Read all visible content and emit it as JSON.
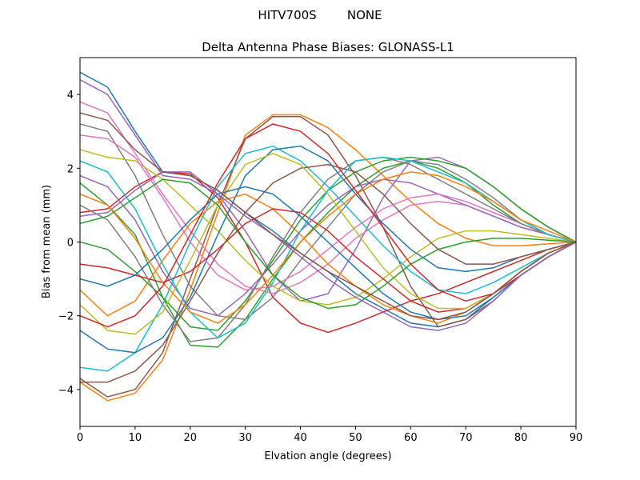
{
  "chart_data": {
    "type": "line",
    "suptitle": "HITV700S        NONE",
    "title": "Delta Antenna Phase Biases: GLONASS-L1",
    "xlabel": "Elvation angle (degrees)",
    "ylabel": "Bias from mean (mm)",
    "xlim": [
      0,
      90
    ],
    "ylim": [
      -5,
      5
    ],
    "xticks": [
      0,
      10,
      20,
      30,
      40,
      50,
      60,
      70,
      80,
      90
    ],
    "yticks": [
      -4,
      -2,
      0,
      2,
      4
    ],
    "grid": false,
    "colors": [
      "#1f77b4",
      "#ff7f0e",
      "#2ca02c",
      "#d62728",
      "#9467bd",
      "#8c564b",
      "#e377c2",
      "#7f7f7f",
      "#bcbd22",
      "#17becf"
    ],
    "x": [
      0,
      5,
      10,
      15,
      20,
      25,
      30,
      35,
      40,
      45,
      50,
      55,
      60,
      65,
      70,
      75,
      80,
      85,
      90
    ],
    "series": [
      {
        "values": [
          4.6,
          4.2,
          3.0,
          1.9,
          1.8,
          1.4,
          0.8,
          0.3,
          -0.3,
          -0.8,
          -1.4,
          -1.8,
          -2.2,
          -2.3,
          -2.1,
          -1.5,
          -0.9,
          -0.4,
          0
        ]
      },
      {
        "values": [
          -3.8,
          -4.3,
          -4.1,
          -3.2,
          -1.3,
          0.8,
          2.9,
          3.45,
          3.45,
          3.1,
          2.5,
          1.8,
          1.1,
          0.5,
          0.1,
          -0.1,
          -0.1,
          -0.05,
          0
        ]
      },
      {
        "values": [
          1.6,
          1.0,
          0.2,
          -1.5,
          -2.8,
          -2.85,
          -2.1,
          -1.0,
          0.0,
          0.8,
          1.5,
          2.0,
          2.2,
          2.0,
          1.6,
          1.0,
          0.5,
          0.2,
          0
        ]
      },
      {
        "values": [
          0.8,
          0.9,
          1.5,
          1.9,
          1.85,
          1.2,
          0.0,
          -1.5,
          -2.2,
          -2.45,
          -2.2,
          -1.9,
          -1.6,
          -1.4,
          -1.1,
          -0.8,
          -0.5,
          -0.2,
          0
        ]
      },
      {
        "values": [
          0.7,
          0.8,
          1.4,
          1.9,
          1.9,
          1.3,
          0.3,
          -0.9,
          -1.6,
          -1.4,
          -0.2,
          1.2,
          2.2,
          2.3,
          2.0,
          1.5,
          0.9,
          0.4,
          0
        ]
      },
      {
        "values": [
          -3.7,
          -4.2,
          -4.0,
          -3.0,
          -1.0,
          1.0,
          2.8,
          3.4,
          3.4,
          2.9,
          1.8,
          0.4,
          -1.2,
          -2.3,
          -2.1,
          -1.6,
          -0.9,
          -0.4,
          0
        ]
      },
      {
        "values": [
          3.8,
          3.5,
          2.4,
          1.3,
          0.3,
          -0.6,
          -1.2,
          -1.4,
          -1.1,
          -0.6,
          0.1,
          0.6,
          1.0,
          1.1,
          1.0,
          0.7,
          0.4,
          0.2,
          0
        ]
      },
      {
        "values": [
          3.2,
          3.0,
          1.8,
          0.2,
          -1.2,
          -2.0,
          -2.1,
          -1.5,
          -0.5,
          0.4,
          1.3,
          1.9,
          2.2,
          2.1,
          1.7,
          1.2,
          0.6,
          0.2,
          0
        ]
      },
      {
        "values": [
          2.5,
          2.3,
          2.2,
          1.7,
          1.0,
          0.3,
          -0.5,
          -1.2,
          -1.6,
          -1.7,
          -1.5,
          -1.0,
          -0.4,
          0.1,
          0.3,
          0.3,
          0.2,
          0.1,
          0
        ]
      },
      {
        "values": [
          -3.4,
          -3.5,
          -3.0,
          -1.7,
          0.0,
          1.5,
          2.4,
          2.6,
          2.2,
          1.5,
          0.7,
          -0.1,
          -0.8,
          -1.3,
          -1.4,
          -1.1,
          -0.7,
          -0.3,
          0
        ]
      },
      {
        "values": [
          -2.4,
          -2.9,
          -3.0,
          -2.6,
          -1.5,
          0.2,
          1.8,
          2.5,
          2.6,
          2.2,
          1.3,
          0.5,
          -0.2,
          -0.7,
          -0.8,
          -0.7,
          -0.4,
          -0.2,
          0
        ]
      },
      {
        "values": [
          -1.3,
          -2.0,
          -1.6,
          -0.5,
          0.5,
          1.1,
          1.3,
          0.9,
          0.2,
          -0.6,
          -1.2,
          -1.7,
          -2.0,
          -2.2,
          -1.9,
          -1.4,
          -0.8,
          -0.3,
          0
        ]
      },
      {
        "values": [
          0.0,
          -0.2,
          -0.8,
          -1.5,
          -2.3,
          -2.4,
          -1.6,
          -0.5,
          0.6,
          1.4,
          1.9,
          2.2,
          2.3,
          2.2,
          2.0,
          1.5,
          0.9,
          0.4,
          0
        ]
      },
      {
        "values": [
          -0.6,
          -0.7,
          -0.9,
          -1.1,
          -0.8,
          -0.2,
          0.5,
          0.9,
          0.8,
          0.3,
          -0.4,
          -1.0,
          -1.6,
          -1.9,
          -1.8,
          -1.4,
          -0.8,
          -0.3,
          0
        ]
      },
      {
        "values": [
          1.8,
          1.5,
          0.6,
          -0.8,
          -1.8,
          -2.0,
          -1.4,
          -0.6,
          0.3,
          1.0,
          1.5,
          1.7,
          1.6,
          1.3,
          1.0,
          0.7,
          0.4,
          0.2,
          0
        ]
      },
      {
        "values": [
          -3.8,
          -3.8,
          -3.5,
          -2.8,
          -1.6,
          -0.3,
          0.8,
          1.6,
          2.0,
          2.1,
          1.9,
          1.3,
          0.5,
          -0.2,
          -0.6,
          -0.6,
          -0.4,
          -0.2,
          0
        ]
      },
      {
        "values": [
          2.9,
          2.8,
          2.3,
          1.2,
          0.0,
          -0.9,
          -1.3,
          -1.2,
          -0.8,
          -0.2,
          0.4,
          0.9,
          1.2,
          1.3,
          1.1,
          0.8,
          0.5,
          0.2,
          0
        ]
      },
      {
        "values": [
          1.0,
          0.6,
          -0.4,
          -1.7,
          -2.7,
          -2.6,
          -1.7,
          -0.4,
          0.8,
          1.7,
          2.2,
          2.3,
          2.1,
          1.7,
          1.3,
          0.9,
          0.5,
          0.2,
          0
        ]
      },
      {
        "values": [
          -1.7,
          -2.4,
          -2.5,
          -1.9,
          -0.5,
          1.0,
          2.1,
          2.4,
          2.1,
          1.3,
          0.3,
          -0.7,
          -1.4,
          -1.8,
          -1.8,
          -1.4,
          -0.8,
          -0.3,
          0
        ]
      },
      {
        "values": [
          2.2,
          1.9,
          0.9,
          -0.6,
          -1.9,
          -2.6,
          -2.2,
          -1.1,
          0.3,
          1.4,
          2.2,
          2.3,
          2.2,
          1.9,
          1.6,
          1.1,
          0.6,
          0.2,
          0
        ]
      },
      {
        "values": [
          -1.0,
          -1.2,
          -0.9,
          -0.2,
          0.6,
          1.3,
          1.5,
          1.3,
          0.7,
          0.0,
          -0.7,
          -1.4,
          -1.9,
          -2.1,
          -2.0,
          -1.5,
          -0.9,
          -0.4,
          0
        ]
      },
      {
        "values": [
          1.3,
          1.0,
          0.1,
          -1.1,
          -1.9,
          -2.2,
          -1.7,
          -0.9,
          0.0,
          0.7,
          1.3,
          1.7,
          1.9,
          1.8,
          1.5,
          1.1,
          0.6,
          0.3,
          0
        ]
      },
      {
        "values": [
          0.5,
          0.7,
          1.2,
          1.7,
          1.6,
          1.0,
          0.0,
          -0.9,
          -1.5,
          -1.8,
          -1.7,
          -1.2,
          -0.6,
          -0.2,
          0.0,
          0.1,
          0.1,
          0.05,
          0
        ]
      },
      {
        "values": [
          -2.0,
          -2.3,
          -2.0,
          -1.2,
          0.2,
          1.6,
          2.8,
          3.2,
          3.0,
          2.4,
          1.4,
          0.4,
          -0.6,
          -1.3,
          -1.6,
          -1.4,
          -0.9,
          -0.4,
          0
        ]
      },
      {
        "values": [
          4.4,
          4.0,
          2.9,
          1.8,
          1.7,
          1.3,
          0.7,
          0.2,
          -0.4,
          -1.0,
          -1.5,
          -1.9,
          -2.3,
          -2.4,
          -2.2,
          -1.6,
          -0.9,
          -0.4,
          0
        ]
      },
      {
        "values": [
          3.5,
          3.3,
          2.5,
          1.9,
          1.8,
          1.4,
          0.8,
          0.2,
          -0.3,
          -0.8,
          -1.2,
          -1.6,
          -2.0,
          -2.1,
          -1.9,
          -1.4,
          -0.8,
          -0.3,
          0
        ]
      }
    ]
  }
}
